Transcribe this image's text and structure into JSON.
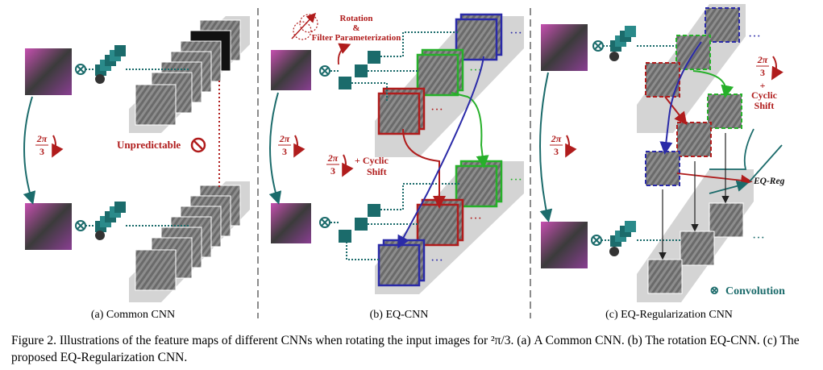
{
  "panels": [
    {
      "id": "a",
      "caption": "(a) Common CNN",
      "annotation": "Unpredictable"
    },
    {
      "id": "b",
      "caption": "(b) EQ-CNN",
      "top_label_line1": "Rotation",
      "top_label_line2": "&",
      "top_label_line3": "Filter Parameterization",
      "side_label_plus": "+ Cyclic",
      "side_label_shift": "Shift"
    },
    {
      "id": "c",
      "caption": "(c) EQ-Regularization CNN",
      "side_label_plus": "+",
      "side_label_cyclic": "Cyclic",
      "side_label_shift": "Shift",
      "reg_label": "EQ-Reg",
      "legend_symbol": "⊗",
      "legend_label": "Convolution"
    }
  ],
  "rotation_label": {
    "num": "2π",
    "den": "3"
  },
  "figure_caption": {
    "label": "Figure 2.",
    "text": "Illustrations of the feature maps of different CNNs when rotating the input images for ²π/3. (a) A Common CNN. (b) The rotation EQ-CNN. (c) The proposed EQ-Regularization CNN."
  },
  "colors": {
    "red": "#b01c1c",
    "green": "#27b02a",
    "blue": "#2a2aa8",
    "teal": "#1b6b6b",
    "gray_band": "#cfcfcf",
    "dark_red": "#a31818"
  }
}
